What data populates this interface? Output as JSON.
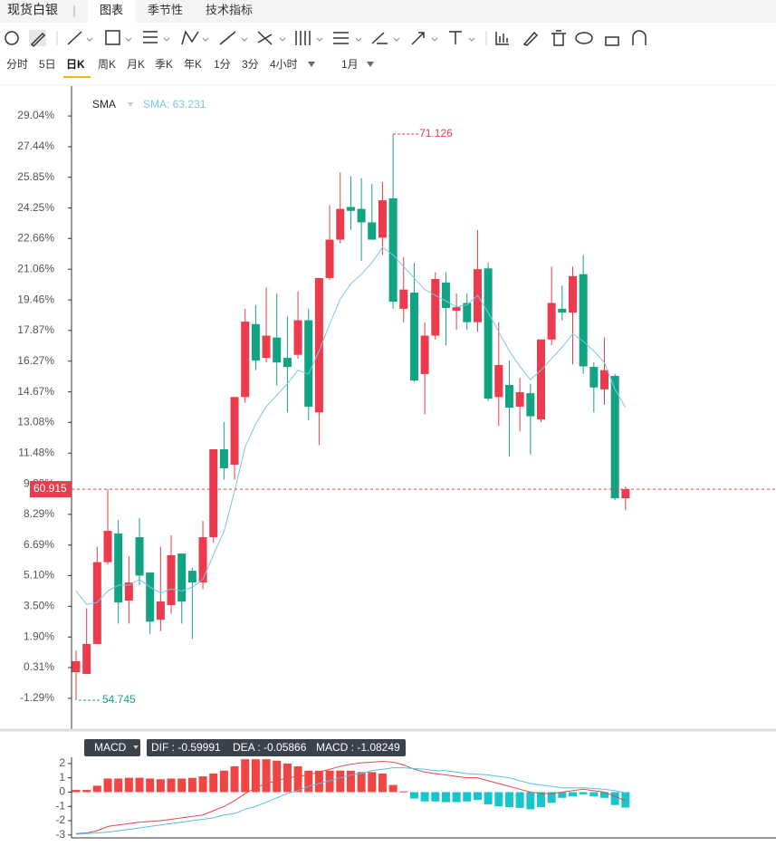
{
  "header": {
    "symbol": "现货白银",
    "tabs": [
      "图表",
      "季节性",
      "技术指标"
    ]
  },
  "periods": [
    "分时",
    "5日",
    "日K",
    "周K",
    "月K",
    "季K",
    "年K",
    "1分",
    "3分",
    "4小时",
    "1月"
  ],
  "chart_data": [
    {
      "type": "candlestick",
      "legend": "SMA",
      "sma_label": "SMA: 63.231",
      "up_color": "#eb3b4c",
      "down_color": "#12a383",
      "sma_color": "#7cc6e8",
      "max_label": "71.126",
      "min_label": "54.745",
      "last_label": "60.915",
      "ylim": [
        -2.9,
        30.6
      ],
      "yticks": [
        {
          "value": 29.04,
          "label": "29.04%"
        },
        {
          "value": 27.44,
          "label": "27.44%"
        },
        {
          "value": 25.85,
          "label": "25.85%"
        },
        {
          "value": 24.25,
          "label": "24.25%"
        },
        {
          "value": 22.66,
          "label": "22.66%"
        },
        {
          "value": 21.06,
          "label": "21.06%"
        },
        {
          "value": 19.46,
          "label": "19.46%"
        },
        {
          "value": 17.87,
          "label": "17.87%"
        },
        {
          "value": 16.27,
          "label": "16.27%"
        },
        {
          "value": 14.67,
          "label": "14.67%"
        },
        {
          "value": 13.08,
          "label": "13.08%"
        },
        {
          "value": 11.48,
          "label": "11.48%"
        },
        {
          "value": 9.88,
          "label": "9.88%"
        },
        {
          "value": 8.29,
          "label": "8.29%"
        },
        {
          "value": 6.69,
          "label": "6.69%"
        },
        {
          "value": 5.1,
          "label": "5.10%"
        },
        {
          "value": 3.5,
          "label": "3.50%"
        },
        {
          "value": 1.9,
          "label": "1.90%"
        },
        {
          "value": 0.31,
          "label": "0.31%"
        },
        {
          "value": -1.29,
          "label": "-1.29%"
        }
      ],
      "open": [
        0.07,
        -0.02,
        1.54,
        5.8,
        7.29,
        3.8,
        7.1,
        5.26,
        2.8,
        3.56,
        6.25,
        5.35,
        4.74,
        7.1,
        11.68,
        10.88,
        14.4,
        18.2,
        16.44,
        17.5,
        16.44,
        16.6,
        18.4,
        13.6,
        20.6,
        22.6,
        24.3,
        24.2,
        23.5,
        22.7,
        24.75,
        19.0,
        19.84,
        15.6,
        17.6,
        20.36,
        18.9,
        19.3,
        18.3,
        21.1,
        14.4,
        15.03,
        13.9,
        14.6,
        13.24,
        17.4,
        19.0,
        18.8,
        20.8,
        15.97,
        14.8,
        15.5,
        9.13
      ],
      "high": [
        1.2,
        3.4,
        6.6,
        9.6,
        8.0,
        6.1,
        8.1,
        5.26,
        6.6,
        7.2,
        6.25,
        5.5,
        7.95,
        11.68,
        13.1,
        14.4,
        19.0,
        19.2,
        20.1,
        19.8,
        18.6,
        19.9,
        19.0,
        20.6,
        24.4,
        26.1,
        25.9,
        25.8,
        25.5,
        25.6,
        28.1,
        21.7,
        21.4,
        18.3,
        20.9,
        20.9,
        19.8,
        19.8,
        23.1,
        21.4,
        18.3,
        16.3,
        15.4,
        15.1,
        17.4,
        21.2,
        20.2,
        21.2,
        21.8,
        16.2,
        17.5,
        15.6,
        9.74
      ],
      "low": [
        -1.39,
        -0.02,
        1.54,
        5.67,
        2.6,
        2.6,
        4.6,
        2.06,
        2.2,
        3.1,
        2.6,
        1.8,
        4.4,
        6.8,
        10.1,
        10.1,
        14.1,
        15.8,
        16.2,
        15.0,
        13.6,
        16.4,
        13.2,
        11.9,
        20.5,
        22.4,
        23.1,
        21.5,
        22.6,
        21.8,
        19.0,
        18.3,
        15.2,
        13.5,
        17.4,
        17.1,
        17.9,
        17.9,
        17.8,
        14.2,
        12.9,
        11.3,
        12.6,
        11.4,
        13.1,
        17.1,
        18.4,
        16.1,
        15.6,
        13.6,
        14.0,
        9.04,
        8.52
      ],
      "close": [
        0.64,
        1.54,
        5.8,
        7.43,
        3.7,
        4.74,
        5.1,
        2.7,
        3.75,
        6.16,
        3.75,
        4.74,
        7.1,
        11.68,
        10.69,
        14.4,
        18.33,
        16.3,
        17.6,
        16.2,
        15.97,
        18.4,
        13.9,
        20.6,
        22.6,
        24.2,
        24.1,
        23.5,
        22.6,
        24.65,
        19.37,
        20.0,
        15.26,
        17.6,
        20.55,
        19.04,
        19.08,
        18.3,
        21.06,
        14.32,
        16.07,
        13.85,
        14.65,
        13.4,
        17.4,
        19.3,
        18.8,
        20.7,
        16.0,
        14.9,
        15.8,
        9.13,
        9.6
      ],
      "sma": [
        4.3,
        3.6,
        3.7,
        4.3,
        4.6,
        4.6,
        4.9,
        4.5,
        4.2,
        4.4,
        4.3,
        4.5,
        4.9,
        6.2,
        7.4,
        9.5,
        11.8,
        13.0,
        13.9,
        14.5,
        15.1,
        15.8,
        15.6,
        16.8,
        18.2,
        19.5,
        20.3,
        20.8,
        21.4,
        22.2,
        21.8,
        21.2,
        20.6,
        20.0,
        19.7,
        19.4,
        19.1,
        19.2,
        19.7,
        18.8,
        17.8,
        16.8,
        16.0,
        15.3,
        15.8,
        16.4,
        17.0,
        17.7,
        17.3,
        16.8,
        16.2,
        14.8,
        13.85
      ]
    },
    {
      "type": "macd",
      "legend": "MACD",
      "dif_label": "DIF : -0.59991",
      "dea_label": "DEA : -0.05866",
      "macd_label": "MACD : -1.08249",
      "ylim": [
        -3.2,
        2.5
      ],
      "yticks": [
        2,
        1,
        0,
        -1,
        -2,
        -3
      ],
      "series": [
        {
          "name": "MACD",
          "color": "#f04545",
          "neg_color": "#16c6cc",
          "values": [
            0.15,
            0.15,
            0.45,
            0.95,
            0.95,
            1.0,
            1.0,
            0.95,
            0.9,
            0.95,
            0.95,
            1.0,
            1.1,
            1.3,
            1.5,
            1.8,
            2.3,
            2.3,
            2.3,
            2.2,
            2.0,
            1.8,
            1.5,
            1.5,
            1.5,
            1.5,
            1.5,
            1.4,
            1.4,
            1.3,
            0.5,
            0.05,
            -0.45,
            -0.65,
            -0.65,
            -0.7,
            -0.7,
            -0.65,
            -0.55,
            -0.85,
            -1.0,
            -1.05,
            -1.1,
            -1.2,
            -1.05,
            -0.75,
            -0.4,
            -0.3,
            -0.15,
            -0.3,
            -0.4,
            -0.9,
            -1.08249
          ]
        },
        {
          "name": "DIF",
          "color": "#e8474c",
          "values": [
            -2.9,
            -2.85,
            -2.7,
            -2.4,
            -2.3,
            -2.2,
            -2.1,
            -2.05,
            -2.0,
            -1.9,
            -1.8,
            -1.7,
            -1.6,
            -1.3,
            -1.0,
            -0.6,
            -0.1,
            0.3,
            0.6,
            0.8,
            1.0,
            1.1,
            1.2,
            1.4,
            1.6,
            1.8,
            1.95,
            2.05,
            2.1,
            2.15,
            2.1,
            1.9,
            1.6,
            1.4,
            1.3,
            1.2,
            1.1,
            1.0,
            1.0,
            0.8,
            0.6,
            0.4,
            0.2,
            0.0,
            -0.1,
            -0.1,
            0.0,
            0.1,
            0.2,
            0.1,
            0.0,
            -0.3,
            -0.59991
          ]
        },
        {
          "name": "DEA",
          "color": "#5bbde6",
          "values": [
            -2.95,
            -2.9,
            -2.85,
            -2.8,
            -2.7,
            -2.6,
            -2.5,
            -2.4,
            -2.3,
            -2.2,
            -2.1,
            -2.0,
            -1.9,
            -1.8,
            -1.6,
            -1.5,
            -1.2,
            -1.0,
            -0.7,
            -0.4,
            -0.1,
            0.1,
            0.4,
            0.6,
            0.8,
            1.0,
            1.2,
            1.3,
            1.5,
            1.6,
            1.7,
            1.7,
            1.65,
            1.6,
            1.5,
            1.5,
            1.4,
            1.3,
            1.25,
            1.2,
            1.1,
            1.0,
            0.8,
            0.6,
            0.5,
            0.4,
            0.3,
            0.3,
            0.3,
            0.25,
            0.2,
            0.1,
            -0.05866
          ]
        }
      ]
    }
  ]
}
